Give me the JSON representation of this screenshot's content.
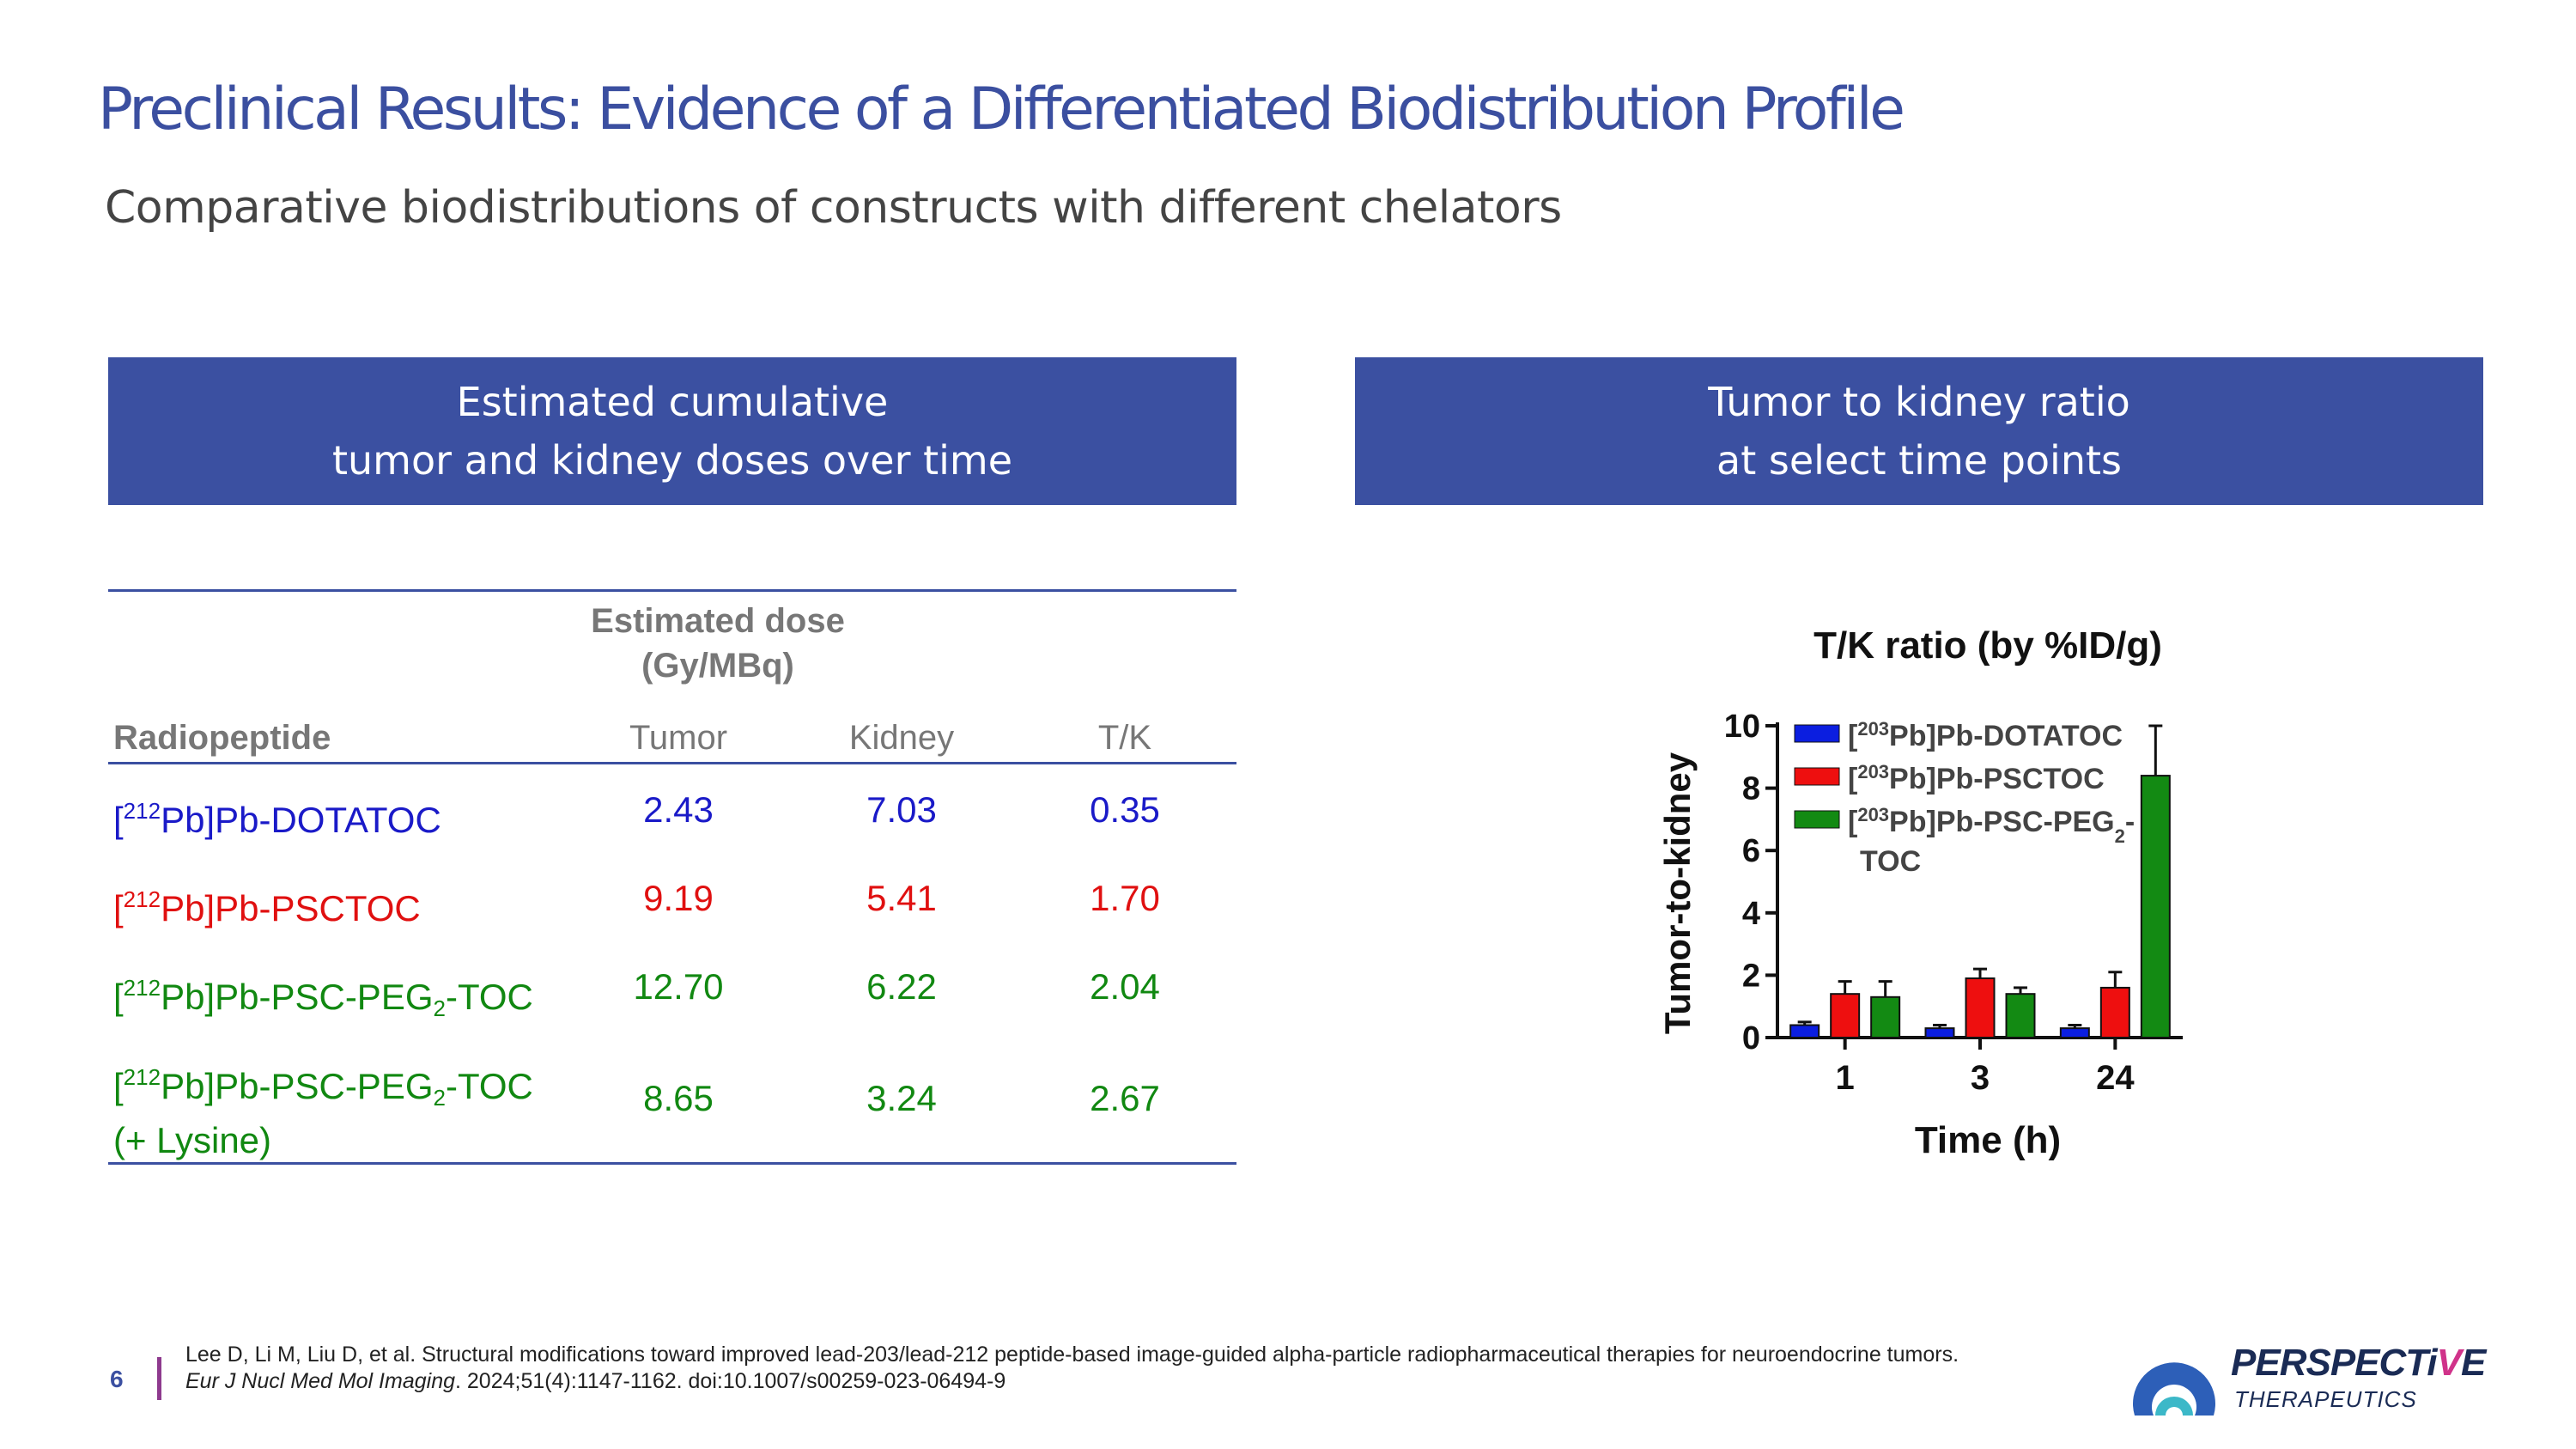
{
  "slide": {
    "title": "Preclinical Results: Evidence of a Differentiated Biodistribution Profile",
    "subtitle": "Comparative biodistributions of constructs with different chelators",
    "page_number": "6"
  },
  "banners": {
    "left_line1": "Estimated cumulative",
    "left_line2": "tumor and kidney doses over time",
    "right_line1": "Tumor to kidney ratio",
    "right_line2": "at select time points"
  },
  "table": {
    "group_header_line1": "Estimated dose",
    "group_header_line2": "(Gy/MBq)",
    "columns": [
      "Radiopeptide",
      "Tumor",
      "Kidney",
      "T/K"
    ],
    "rows": [
      {
        "pre": "[",
        "sup": "212",
        "mid": "Pb]Pb-DOTATOC",
        "sub": "",
        "post": "",
        "line2": "",
        "tumor": "2.43",
        "kidney": "7.03",
        "tk": "0.35",
        "color": "#1a1ac8"
      },
      {
        "pre": "[",
        "sup": "212",
        "mid": "Pb]Pb-PSCTOC",
        "sub": "",
        "post": "",
        "line2": "",
        "tumor": "9.19",
        "kidney": "5.41",
        "tk": "1.70",
        "color": "#e01010"
      },
      {
        "pre": "[",
        "sup": "212",
        "mid": "Pb]Pb-PSC-PEG",
        "sub": "2",
        "post": "-TOC",
        "line2": "",
        "tumor": "12.70",
        "kidney": "6.22",
        "tk": "2.04",
        "color": "#118811"
      },
      {
        "pre": "[",
        "sup": "212",
        "mid": "Pb]Pb-PSC-PEG",
        "sub": "2",
        "post": "-TOC",
        "line2": "(+ Lysine)",
        "tumor": "8.65",
        "kidney": "3.24",
        "tk": "2.67",
        "color": "#118811"
      }
    ]
  },
  "chart_data": {
    "type": "bar",
    "title": "T/K ratio (by %ID/g)",
    "xlabel": "Time (h)",
    "ylabel": "Tumor-to-kidney",
    "categories": [
      "1",
      "3",
      "24"
    ],
    "ylim": [
      0,
      10
    ],
    "yticks": [
      "0",
      "2",
      "4",
      "6",
      "8",
      "10"
    ],
    "series": [
      {
        "name_pre": "[",
        "name_sup": "203",
        "name_main": "Pb]Pb-DOTATOC",
        "name_sub": "",
        "name_post": "",
        "name_line2": "",
        "color": "#0b1ee0",
        "values": [
          0.4,
          0.3,
          0.3
        ],
        "errors": [
          0.1,
          0.1,
          0.1
        ]
      },
      {
        "name_pre": "[",
        "name_sup": "203",
        "name_main": "Pb]Pb-PSCTOC",
        "name_sub": "",
        "name_post": "",
        "name_line2": "",
        "color": "#ee0f0f",
        "values": [
          1.4,
          1.9,
          1.6
        ],
        "errors": [
          0.4,
          0.3,
          0.5
        ]
      },
      {
        "name_pre": "[",
        "name_sup": "203",
        "name_main": "Pb]Pb-PSC-PEG",
        "name_sub": "2",
        "name_post": "-",
        "name_line2": "TOC",
        "color": "#138a13",
        "values": [
          1.3,
          1.4,
          8.4
        ],
        "errors": [
          0.5,
          0.2,
          1.6
        ]
      }
    ]
  },
  "footer": {
    "reference_part1": "Lee D, Li M, Liu D, et al. Structural modifications toward improved lead-203/lead-212 peptide-based image-guided alpha-particle radiopharmaceutical therapies for neuroendocrine tumors. ",
    "reference_journal": "Eur J Nucl Med Mol Imaging",
    "reference_part2": ". 2024;51(4):1147-1162. doi:10.1007/s00259-023-06494-9"
  },
  "logo": {
    "name_main": "PERSPECTi",
    "name_accent": "V",
    "name_end": "E",
    "tagline": "THERAPEUTICS",
    "colors": {
      "navy": "#1a2b55",
      "blue": "#2d5fb8",
      "teal": "#3cb8c8",
      "magenta": "#d0338a"
    }
  }
}
